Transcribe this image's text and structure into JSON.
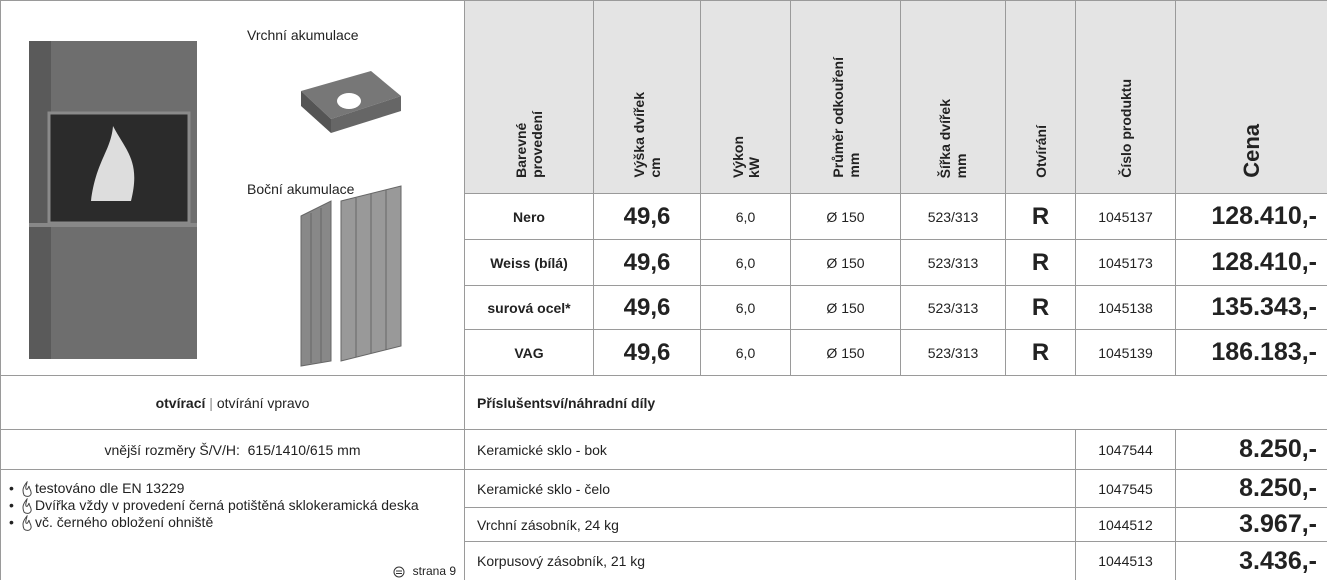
{
  "product": {
    "top_label": "Vrchní akumulace",
    "side_label": "Boční akumulace"
  },
  "table": {
    "headers": [
      "Barevné\nprovedení",
      "Výška dvířek\ncm",
      "Výkon\nkW",
      "Průměr odkouření\nmm",
      "Šířka dvířek\nmm",
      "Otvírání",
      "Číslo produktu",
      "Cena"
    ],
    "rows": [
      [
        "Nero",
        "49,6",
        "6,0",
        "Ø 150",
        "523/313",
        "R",
        "1045137",
        "128.410,-"
      ],
      [
        "Weiss (bílá)",
        "49,6",
        "6,0",
        "Ø 150",
        "523/313",
        "R",
        "1045173",
        "128.410,-"
      ],
      [
        "surová ocel*",
        "49,6",
        "6,0",
        "Ø 150",
        "523/313",
        "R",
        "1045138",
        "135.343,-"
      ],
      [
        "VAG",
        "49,6",
        "6,0",
        "Ø 150",
        "523/313",
        "R",
        "1045139",
        "186.183,-"
      ]
    ]
  },
  "opening": {
    "bold": "otvírací",
    "separator": "|",
    "rest": "otvírání vpravo"
  },
  "dimensions": "vnější rozměry Š/V/H:  615/1410/615 mm",
  "accessories": {
    "title": "Příslušentsví/náhradní díly",
    "rows": [
      [
        "Keramické sklo - bok",
        "1047544",
        "8.250,-"
      ],
      [
        "Keramické sklo - čelo",
        "1047545",
        "8.250,-"
      ],
      [
        "Vrchní zásobník, 24 kg",
        "1044512",
        "3.967,-"
      ],
      [
        "Korpusový zásobník, 21 kg",
        "1044513",
        "3.436,-"
      ]
    ]
  },
  "features": {
    "items": [
      "testováno dle EN 13229",
      "Dvířka vždy v provedení černá potištěná sklokeramická deska",
      "vč. černého obložení ohniště"
    ],
    "page_ref": "strana 9"
  }
}
